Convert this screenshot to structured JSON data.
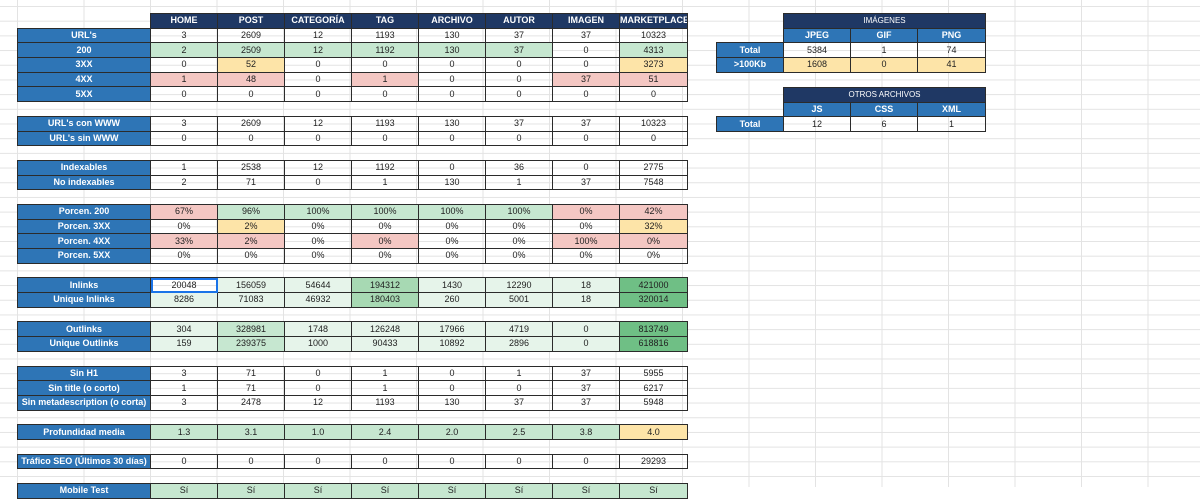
{
  "main": {
    "columns": [
      "HOME",
      "POST",
      "CATEGORÍA",
      "TAG",
      "ARCHIVO",
      "AUTOR",
      "IMAGEN",
      "MARKETPLACE"
    ],
    "rows": [
      {
        "label": "URL's",
        "cells": [
          "3",
          "2609",
          "12",
          "1193",
          "130",
          "37",
          "37",
          "10323"
        ],
        "colors": [
          "",
          "",
          "",
          "",
          "",
          "",
          "",
          ""
        ]
      },
      {
        "label": "200",
        "cells": [
          "2",
          "2509",
          "12",
          "1192",
          "130",
          "37",
          "0",
          "4313"
        ],
        "colors": [
          "g",
          "g",
          "g",
          "g",
          "g",
          "g",
          "",
          "g"
        ]
      },
      {
        "label": "3XX",
        "cells": [
          "0",
          "52",
          "0",
          "0",
          "0",
          "0",
          "0",
          "3273"
        ],
        "colors": [
          "",
          "y",
          "",
          "",
          "",
          "",
          "",
          "y"
        ]
      },
      {
        "label": "4XX",
        "cells": [
          "1",
          "48",
          "0",
          "1",
          "0",
          "0",
          "37",
          "51"
        ],
        "colors": [
          "r",
          "r",
          "",
          "r",
          "",
          "",
          "r",
          "r"
        ]
      },
      {
        "label": "5XX",
        "cells": [
          "0",
          "0",
          "0",
          "0",
          "0",
          "0",
          "0",
          "0"
        ],
        "colors": [
          "",
          "",
          "",
          "",
          "",
          "",
          "",
          ""
        ]
      },
      {
        "gap": true
      },
      {
        "label": "URL's con WWW",
        "cells": [
          "3",
          "2609",
          "12",
          "1193",
          "130",
          "37",
          "37",
          "10323"
        ],
        "colors": [
          "",
          "",
          "",
          "",
          "",
          "",
          "",
          ""
        ]
      },
      {
        "label": "URL's sin WWW",
        "cells": [
          "0",
          "0",
          "0",
          "0",
          "0",
          "0",
          "0",
          "0"
        ],
        "colors": [
          "",
          "",
          "",
          "",
          "",
          "",
          "",
          ""
        ]
      },
      {
        "gap": true
      },
      {
        "label": "Indexables",
        "cells": [
          "1",
          "2538",
          "12",
          "1192",
          "0",
          "36",
          "0",
          "2775"
        ],
        "colors": [
          "",
          "",
          "",
          "",
          "",
          "",
          "",
          ""
        ]
      },
      {
        "label": "No indexables",
        "cells": [
          "2",
          "71",
          "0",
          "1",
          "130",
          "1",
          "37",
          "7548"
        ],
        "colors": [
          "",
          "",
          "",
          "",
          "",
          "",
          "",
          ""
        ]
      },
      {
        "gap": true
      },
      {
        "label": "Porcen. 200",
        "cells": [
          "67%",
          "96%",
          "100%",
          "100%",
          "100%",
          "100%",
          "0%",
          "42%"
        ],
        "colors": [
          "r",
          "g",
          "g",
          "g",
          "g",
          "g",
          "r",
          "r"
        ]
      },
      {
        "label": "Porcen. 3XX",
        "cells": [
          "0%",
          "2%",
          "0%",
          "0%",
          "0%",
          "0%",
          "0%",
          "32%"
        ],
        "colors": [
          "",
          "y",
          "",
          "",
          "",
          "",
          "",
          "y"
        ]
      },
      {
        "label": "Porcen. 4XX",
        "cells": [
          "33%",
          "2%",
          "0%",
          "0%",
          "0%",
          "0%",
          "100%",
          "0%"
        ],
        "colors": [
          "r",
          "r",
          "",
          "r",
          "",
          "",
          "r",
          "r"
        ]
      },
      {
        "label": "Porcen. 5XX",
        "cells": [
          "0%",
          "0%",
          "0%",
          "0%",
          "0%",
          "0%",
          "0%",
          "0%"
        ],
        "colors": [
          "",
          "",
          "",
          "",
          "",
          "",
          "",
          ""
        ]
      },
      {
        "gap": true
      },
      {
        "label": "Inlinks",
        "cells": [
          "20048",
          "156059",
          "54644",
          "194312",
          "1430",
          "12290",
          "18",
          "421000"
        ],
        "colors": [
          "sel",
          "g0",
          "g0",
          "g2",
          "g0",
          "g0",
          "g0",
          "g3"
        ]
      },
      {
        "label": "Unique Inlinks",
        "cells": [
          "8286",
          "71083",
          "46932",
          "180403",
          "260",
          "5001",
          "18",
          "320014"
        ],
        "colors": [
          "g0",
          "g0",
          "g0",
          "g2",
          "g0",
          "g0",
          "g0",
          "g3"
        ]
      },
      {
        "gap": true
      },
      {
        "label": "Outlinks",
        "cells": [
          "304",
          "328981",
          "1748",
          "126248",
          "17966",
          "4719",
          "0",
          "813749"
        ],
        "colors": [
          "g0",
          "g",
          "g0",
          "g0",
          "g0",
          "g0",
          "g0",
          "g3"
        ]
      },
      {
        "label": "Unique Outlinks",
        "cells": [
          "159",
          "239375",
          "1000",
          "90433",
          "10892",
          "2896",
          "0",
          "618816"
        ],
        "colors": [
          "g0",
          "g",
          "g0",
          "g0",
          "g0",
          "g0",
          "g0",
          "g3"
        ]
      },
      {
        "gap": true
      },
      {
        "label": "Sin H1",
        "cells": [
          "3",
          "71",
          "0",
          "1",
          "0",
          "1",
          "37",
          "5955"
        ],
        "colors": [
          "",
          "",
          "",
          "",
          "",
          "",
          "",
          ""
        ]
      },
      {
        "label": "Sin title (o corto)",
        "cells": [
          "1",
          "71",
          "0",
          "1",
          "0",
          "0",
          "37",
          "6217"
        ],
        "colors": [
          "",
          "",
          "",
          "",
          "",
          "",
          "",
          ""
        ]
      },
      {
        "label": "Sin metadescription (o corta)",
        "cells": [
          "3",
          "2478",
          "12",
          "1193",
          "130",
          "37",
          "37",
          "5948"
        ],
        "colors": [
          "",
          "",
          "",
          "",
          "",
          "",
          "",
          ""
        ]
      },
      {
        "gap": true
      },
      {
        "label": "Profundidad media",
        "cells": [
          "1.3",
          "3.1",
          "1.0",
          "2.4",
          "2.0",
          "2.5",
          "3.8",
          "4.0"
        ],
        "colors": [
          "g",
          "g",
          "g",
          "g",
          "g",
          "g",
          "g",
          "y"
        ]
      },
      {
        "gap": true
      },
      {
        "label": "Tráfico SEO (Últimos 30 días)",
        "cells": [
          "0",
          "0",
          "0",
          "0",
          "0",
          "0",
          "0",
          "29293"
        ],
        "colors": [
          "",
          "",
          "",
          "",
          "",
          "",
          "",
          ""
        ]
      },
      {
        "gap": true
      },
      {
        "label": "Mobile Test",
        "cells": [
          "Sí",
          "Sí",
          "Sí",
          "Sí",
          "Sí",
          "Sí",
          "Sí",
          "Sí"
        ],
        "colors": [
          "g",
          "g",
          "g",
          "g",
          "g",
          "g",
          "g",
          "g"
        ]
      }
    ]
  },
  "images": {
    "title": "IMÁGENES",
    "columns": [
      "JPEG",
      "GIF",
      "PNG"
    ],
    "rows": [
      {
        "label": "Total",
        "cells": [
          "5384",
          "1",
          "74"
        ],
        "colors": [
          "",
          "",
          ""
        ]
      },
      {
        "label": ">100Kb",
        "cells": [
          "1608",
          "0",
          "41"
        ],
        "colors": [
          "y",
          "y",
          "y"
        ]
      }
    ]
  },
  "other_files": {
    "title": "OTROS ARCHIVOS",
    "columns": [
      "JS",
      "CSS",
      "XML"
    ],
    "rows": [
      {
        "label": "Total",
        "cells": [
          "12",
          "6",
          "1"
        ],
        "colors": [
          "",
          "",
          ""
        ]
      }
    ]
  },
  "colors": {
    "header_dark": "#1f3864",
    "label_blue": "#2e75b6",
    "green": "#c6e7d0",
    "red": "#f4c7c3",
    "yellow": "#fde4a8"
  }
}
